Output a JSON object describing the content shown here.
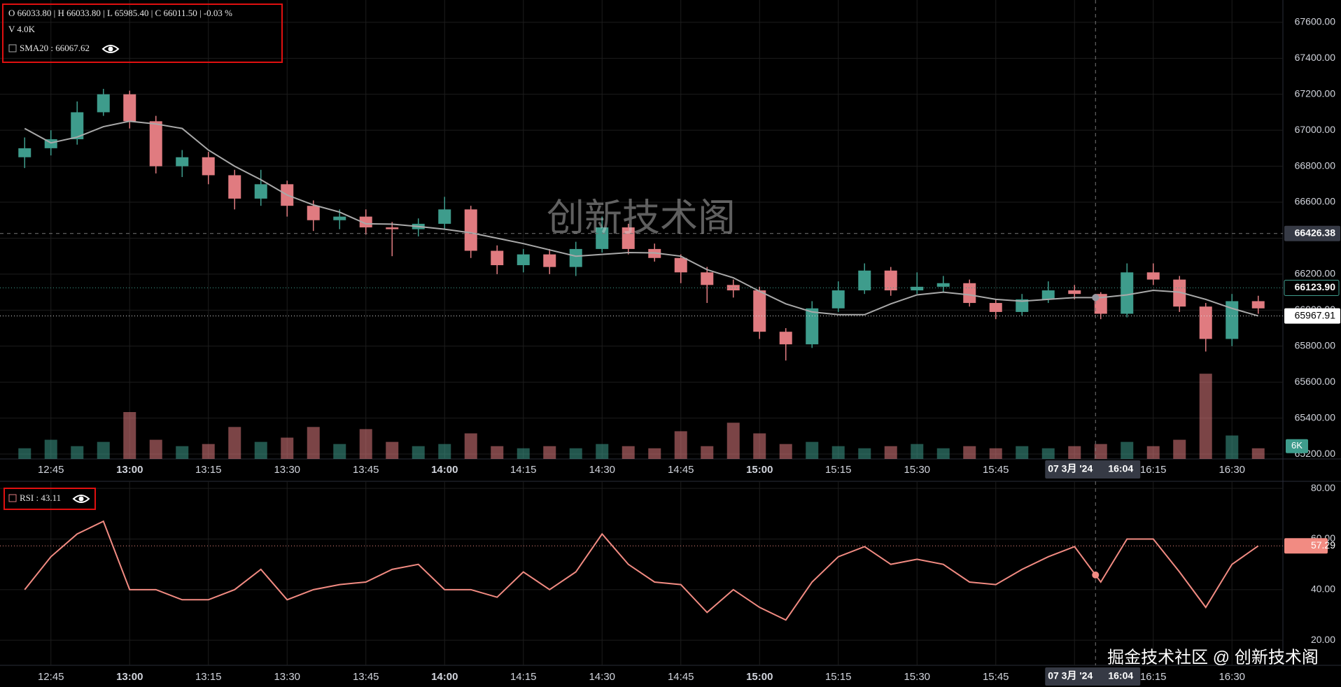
{
  "legend": {
    "ohlc": "O 66033.80 | H 66033.80 | L 65985.40 | C 66011.50 | -0.03 %",
    "volume": "V 4.0K",
    "sma": "SMA20 : 66067.62",
    "rsi": "RSI : 43.11"
  },
  "watermark": "创新技术阁",
  "footer": "掘金技术社区 @ 创新技术阁",
  "chart_data": [
    {
      "type": "candlestick",
      "x": [
        760,
        765,
        770,
        775,
        780,
        785,
        790,
        795,
        800,
        805,
        810,
        815,
        820,
        825,
        830,
        835,
        840,
        845,
        850,
        855,
        860,
        865,
        870,
        875,
        880,
        885,
        890,
        895,
        900,
        905,
        910,
        915,
        920,
        925,
        930,
        935,
        940,
        945,
        950,
        955,
        960,
        965,
        970,
        975,
        980,
        985,
        990,
        995
      ],
      "open": [
        66850,
        66900,
        66950,
        67100,
        67200,
        67050,
        66800,
        66850,
        66750,
        66620,
        66700,
        66580,
        66500,
        66520,
        66460,
        66450,
        66480,
        66560,
        66330,
        66250,
        66310,
        66240,
        66340,
        66460,
        66340,
        66290,
        66210,
        66140,
        66110,
        65880,
        65810,
        66010,
        66110,
        66220,
        66110,
        66130,
        66150,
        66040,
        65990,
        66060,
        66110,
        66090,
        65980,
        66210,
        66170,
        66020,
        65840,
        66050
      ],
      "high": [
        66960,
        67000,
        67160,
        67230,
        67220,
        67080,
        66890,
        66880,
        66780,
        66780,
        66720,
        66610,
        66560,
        66560,
        66490,
        66510,
        66630,
        66580,
        66360,
        66340,
        66340,
        66380,
        66520,
        66480,
        66370,
        66310,
        66240,
        66170,
        66130,
        65900,
        66050,
        66160,
        66260,
        66240,
        66210,
        66190,
        66170,
        66060,
        66090,
        66160,
        66140,
        66100,
        66260,
        66260,
        66190,
        66040,
        66090,
        66080
      ],
      "low": [
        66790,
        66860,
        66920,
        67080,
        67010,
        66760,
        66740,
        66700,
        66560,
        66580,
        66520,
        66440,
        66450,
        66420,
        66300,
        66410,
        66450,
        66290,
        66200,
        66210,
        66200,
        66190,
        66320,
        66310,
        66270,
        66150,
        66040,
        66070,
        65840,
        65720,
        65790,
        65990,
        66090,
        66080,
        66090,
        66100,
        66020,
        65950,
        65970,
        66040,
        66060,
        65950,
        65960,
        66140,
        65990,
        65770,
        65800,
        65980
      ],
      "close": [
        66900,
        66950,
        67100,
        67200,
        67050,
        66800,
        66850,
        66750,
        66620,
        66700,
        66580,
        66500,
        66520,
        66460,
        66450,
        66480,
        66560,
        66330,
        66250,
        66310,
        66240,
        66340,
        66460,
        66340,
        66290,
        66210,
        66140,
        66110,
        65880,
        65810,
        66010,
        66110,
        66220,
        66110,
        66130,
        66150,
        66040,
        65990,
        66060,
        66110,
        66090,
        65980,
        66210,
        66170,
        66020,
        65840,
        66050,
        66010
      ],
      "up_color": "#3e9c8c",
      "down_color": "#e07b80",
      "sma": {
        "color": "#a9a9a9",
        "values": [
          67010,
          66930,
          66962,
          67020,
          67050,
          67035,
          67010,
          66890,
          66800,
          66725,
          66640,
          66585,
          66545,
          66480,
          66478,
          66465,
          66450,
          66430,
          66400,
          66370,
          66335,
          66300,
          66310,
          66320,
          66318,
          66300,
          66225,
          66180,
          66105,
          66035,
          65990,
          65975,
          65975,
          66035,
          66085,
          66100,
          66085,
          66060,
          66050,
          66060,
          66070,
          66070,
          66085,
          66110,
          66100,
          66060,
          66010,
          65967.91
        ]
      },
      "volume": {
        "values": [
          5000,
          9000,
          6000,
          8000,
          22000,
          9000,
          6000,
          7000,
          15000,
          8000,
          10000,
          15000,
          7000,
          14000,
          8000,
          6000,
          7000,
          12000,
          6000,
          5000,
          6000,
          5000,
          7000,
          6000,
          5000,
          13000,
          6000,
          17000,
          12000,
          7000,
          8000,
          6000,
          5000,
          6000,
          7000,
          5000,
          6000,
          5000,
          6000,
          5000,
          6000,
          7000,
          8000,
          6000,
          9000,
          40000,
          11000,
          5000
        ],
        "ylim": [
          0,
          44000
        ],
        "yticks": [
          {
            "value": 6000,
            "label": "6K"
          }
        ]
      },
      "last_price": {
        "value": 66123.9,
        "label": "66123.90"
      },
      "crosshair": {
        "x": 964,
        "price": 66426.38,
        "date_label": "07 3月 '24",
        "time_label": "16:04"
      },
      "xlim": [
        755.3,
        999.7
      ],
      "xticks": [
        {
          "value": 765,
          "label": "12:45"
        },
        {
          "value": 780,
          "label": "13:00"
        },
        {
          "value": 795,
          "label": "13:15"
        },
        {
          "value": 810,
          "label": "13:30"
        },
        {
          "value": 825,
          "label": "13:45"
        },
        {
          "value": 840,
          "label": "14:00"
        },
        {
          "value": 855,
          "label": "14:15"
        },
        {
          "value": 870,
          "label": "14:30"
        },
        {
          "value": 885,
          "label": "14:45"
        },
        {
          "value": 900,
          "label": "15:00"
        },
        {
          "value": 915,
          "label": "15:15"
        },
        {
          "value": 930,
          "label": "15:30"
        },
        {
          "value": 945,
          "label": "15:45"
        },
        {
          "value": 960,
          "label": "16:00"
        },
        {
          "value": 975,
          "label": "16:15"
        },
        {
          "value": 990,
          "label": "16:30"
        }
      ],
      "ylim": [
        65173,
        67724
      ],
      "yticks": [
        {
          "value": 65200,
          "label": "65200.00"
        },
        {
          "value": 65400,
          "label": "65400.00"
        },
        {
          "value": 65600,
          "label": "65600.00"
        },
        {
          "value": 65800,
          "label": "65800.00"
        },
        {
          "value": 66000,
          "label": "66000.00"
        },
        {
          "value": 66200,
          "label": "66200.00"
        },
        {
          "value": 66400,
          "label": "66400.00"
        },
        {
          "value": 66600,
          "label": "66600.00"
        },
        {
          "value": 66800,
          "label": "66800.00"
        },
        {
          "value": 67000,
          "label": "67000.00"
        },
        {
          "value": 67200,
          "label": "67200.00"
        },
        {
          "value": 67400,
          "label": "67400.00"
        },
        {
          "value": 67600,
          "label": "67600.00"
        }
      ],
      "grid": true
    },
    {
      "type": "line",
      "x": [
        760,
        765,
        770,
        775,
        780,
        785,
        790,
        795,
        800,
        805,
        810,
        815,
        820,
        825,
        830,
        835,
        840,
        845,
        850,
        855,
        860,
        865,
        870,
        875,
        880,
        885,
        890,
        895,
        900,
        905,
        910,
        915,
        920,
        925,
        930,
        935,
        940,
        945,
        950,
        955,
        960,
        965,
        970,
        975,
        980,
        985,
        990,
        995
      ],
      "values": [
        40,
        53,
        62,
        67,
        40,
        40,
        36,
        36,
        40,
        48,
        36,
        40,
        42,
        43,
        48,
        50,
        40,
        40,
        37,
        47,
        40,
        47,
        62,
        50,
        43,
        42,
        31,
        40,
        33,
        28,
        43,
        53,
        57,
        50,
        52,
        50,
        43,
        42,
        48,
        53,
        57,
        43,
        60,
        60,
        47,
        33,
        50,
        57.29
      ],
      "color": "#f28b82",
      "crosshair": {
        "x": 964,
        "date_label": "07 3月 '24",
        "time_label": "16:04"
      },
      "xlim": [
        755.3,
        999.7
      ],
      "xticks": [
        {
          "value": 765,
          "label": "12:45"
        },
        {
          "value": 780,
          "label": "13:00"
        },
        {
          "value": 795,
          "label": "13:15"
        },
        {
          "value": 810,
          "label": "13:30"
        },
        {
          "value": 825,
          "label": "13:45"
        },
        {
          "value": 840,
          "label": "14:00"
        },
        {
          "value": 855,
          "label": "14:15"
        },
        {
          "value": 870,
          "label": "14:30"
        },
        {
          "value": 885,
          "label": "14:45"
        },
        {
          "value": 900,
          "label": "15:00"
        },
        {
          "value": 915,
          "label": "15:15"
        },
        {
          "value": 930,
          "label": "15:30"
        },
        {
          "value": 945,
          "label": "15:45"
        },
        {
          "value": 960,
          "label": "16:00"
        },
        {
          "value": 975,
          "label": "16:15"
        },
        {
          "value": 990,
          "label": "16:30"
        }
      ],
      "ylim": [
        10.1,
        82.8
      ],
      "yticks": [
        {
          "value": 20,
          "label": "20.00"
        },
        {
          "value": 40,
          "label": "40.00"
        },
        {
          "value": 60,
          "label": "60.00"
        },
        {
          "value": 80,
          "label": "80.00"
        }
      ],
      "grid": true
    }
  ]
}
